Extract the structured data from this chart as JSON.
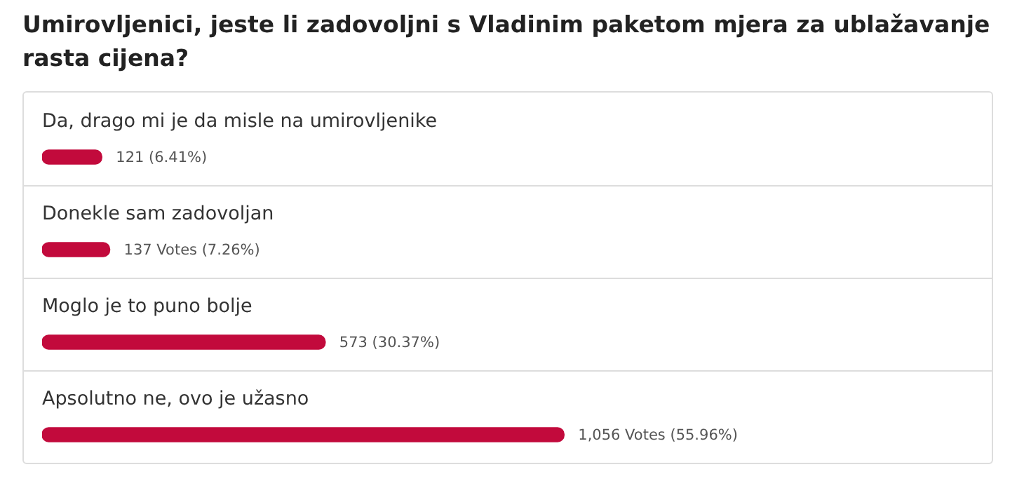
{
  "chart_data": {
    "type": "bar",
    "orientation": "horizontal",
    "title": "Umirovljenici, jeste li zadovoljni s Vladinim paketom mjera za ublažavanje rasta cijena?",
    "categories": [
      "Da, drago mi je da misle na umirovljenike",
      "Donekle sam zadovoljan",
      "Moglo je to puno bolje",
      "Apsolutno ne, ovo je užasno"
    ],
    "values": [
      121,
      137,
      573,
      1056
    ],
    "color": "#c20a3c",
    "value_labels": [
      "121 (6.41%)",
      "137 Votes (7.26%)",
      "573 (30.37%)",
      "1,056 Votes (55.96%)"
    ]
  }
}
